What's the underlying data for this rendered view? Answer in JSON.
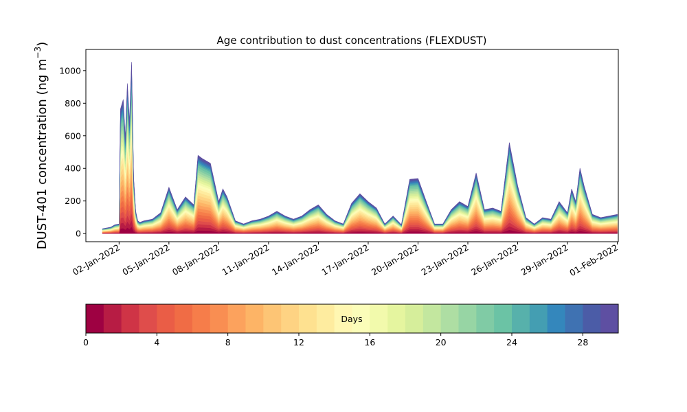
{
  "chart_data": {
    "type": "area",
    "stacked": true,
    "title": "Age contribution to dust concentrations (FLEXDUST)",
    "ylabel_main": "DUST-401 concentration (ng m",
    "ylabel_sup": "−3",
    "ylabel_close": ")",
    "xlabel": "",
    "x_domain": [
      "2021-12-31",
      "2022-02-01"
    ],
    "ylim": [
      -50,
      1130
    ],
    "yticks": [
      0,
      200,
      400,
      600,
      800,
      1000
    ],
    "xticks": [
      "2022-01-02",
      "2022-01-05",
      "2022-01-08",
      "2022-01-11",
      "2022-01-14",
      "2022-01-17",
      "2022-01-20",
      "2022-01-23",
      "2022-01-26",
      "2022-01-29",
      "2022-02-01"
    ],
    "xtick_labels": [
      "02-Jan-2022",
      "05-Jan-2022",
      "08-Jan-2022",
      "11-Jan-2022",
      "14-Jan-2022",
      "17-Jan-2022",
      "20-Jan-2022",
      "23-Jan-2022",
      "26-Jan-2022",
      "29-Jan-2022",
      "01-Feb-2022"
    ],
    "total_concentration": {
      "x": [
        "2022-01-01T00:00",
        "2022-01-01T12:00",
        "2022-01-01T18:00",
        "2022-01-02T00:00",
        "2022-01-02T02:00",
        "2022-01-02T06:00",
        "2022-01-02T09:00",
        "2022-01-02T12:00",
        "2022-01-02T15:00",
        "2022-01-02T18:00",
        "2022-01-02T21:00",
        "2022-01-03T00:00",
        "2022-01-03T03:00",
        "2022-01-03T06:00",
        "2022-01-03T09:00",
        "2022-01-03T12:00",
        "2022-01-04T00:00",
        "2022-01-04T12:00",
        "2022-01-05T00:00",
        "2022-01-05T12:00",
        "2022-01-06T00:00",
        "2022-01-06T12:00",
        "2022-01-06T18:00",
        "2022-01-07T00:00",
        "2022-01-07T12:00",
        "2022-01-08T00:00",
        "2022-01-08T06:00",
        "2022-01-08T12:00",
        "2022-01-09T00:00",
        "2022-01-09T12:00",
        "2022-01-10T00:00",
        "2022-01-10T12:00",
        "2022-01-11T00:00",
        "2022-01-11T12:00",
        "2022-01-12T00:00",
        "2022-01-12T12:00",
        "2022-01-13T00:00",
        "2022-01-13T12:00",
        "2022-01-14T00:00",
        "2022-01-14T12:00",
        "2022-01-15T00:00",
        "2022-01-15T12:00",
        "2022-01-16T00:00",
        "2022-01-16T12:00",
        "2022-01-17T00:00",
        "2022-01-17T12:00",
        "2022-01-18T00:00",
        "2022-01-18T12:00",
        "2022-01-19T00:00",
        "2022-01-19T12:00",
        "2022-01-20T00:00",
        "2022-01-20T12:00",
        "2022-01-21T00:00",
        "2022-01-21T12:00",
        "2022-01-22T00:00",
        "2022-01-22T12:00",
        "2022-01-23T00:00",
        "2022-01-23T12:00",
        "2022-01-24T00:00",
        "2022-01-24T12:00",
        "2022-01-25T00:00",
        "2022-01-25T12:00",
        "2022-01-26T00:00",
        "2022-01-26T12:00",
        "2022-01-27T00:00",
        "2022-01-27T12:00",
        "2022-01-28T00:00",
        "2022-01-28T12:00",
        "2022-01-29T00:00",
        "2022-01-29T06:00",
        "2022-01-29T12:00",
        "2022-01-29T18:00",
        "2022-01-30T00:00",
        "2022-01-30T12:00",
        "2022-01-31T00:00",
        "2022-01-31T12:00",
        "2022-02-01T00:00"
      ],
      "values": [
        30,
        40,
        55,
        60,
        780,
        840,
        600,
        940,
        700,
        1075,
        350,
        140,
        80,
        70,
        75,
        80,
        90,
        130,
        290,
        150,
        230,
        180,
        490,
        470,
        440,
        200,
        280,
        230,
        80,
        60,
        80,
        90,
        110,
        140,
        110,
        90,
        110,
        150,
        180,
        120,
        80,
        60,
        190,
        250,
        200,
        160,
        60,
        110,
        55,
        340,
        345,
        200,
        60,
        60,
        150,
        200,
        170,
        380,
        150,
        160,
        140,
        570,
        300,
        100,
        60,
        100,
        90,
        200,
        130,
        280,
        200,
        410,
        300,
        120,
        100,
        110,
        120
      ]
    },
    "age_fractions": [
      0.04,
      0.04,
      0.04,
      0.04,
      0.04,
      0.04,
      0.04,
      0.04,
      0.04,
      0.04,
      0.04,
      0.04,
      0.04,
      0.04,
      0.03,
      0.03,
      0.03,
      0.03,
      0.03,
      0.03,
      0.03,
      0.03,
      0.03,
      0.03,
      0.02,
      0.02,
      0.02,
      0.02,
      0.02,
      0.02
    ],
    "colorbar": {
      "label": "Days",
      "range": [
        0,
        30
      ],
      "ticks": [
        0,
        4,
        8,
        12,
        16,
        20,
        24,
        28
      ],
      "tick_labels": [
        "0",
        "4",
        "8",
        "12",
        "16",
        "20",
        "24",
        "28"
      ],
      "colors": [
        "#9e0142",
        "#b71c44",
        "#cf3446",
        "#df4d4b",
        "#ea5d46",
        "#f06c45",
        "#f67d4a",
        "#f98e52",
        "#fca25d",
        "#fdb466",
        "#fdc575",
        "#fed383",
        "#fee190",
        "#feec9f",
        "#fff7b2",
        "#fbfdb9",
        "#f2faac",
        "#e5f59f",
        "#d6ee9b",
        "#c3e79f",
        "#aedea3",
        "#97d5a4",
        "#80cba5",
        "#6bc3a5",
        "#57b1ab",
        "#449eb2",
        "#3487bc",
        "#3f72b2",
        "#4b5ca7",
        "#5e4fa2"
      ]
    }
  }
}
